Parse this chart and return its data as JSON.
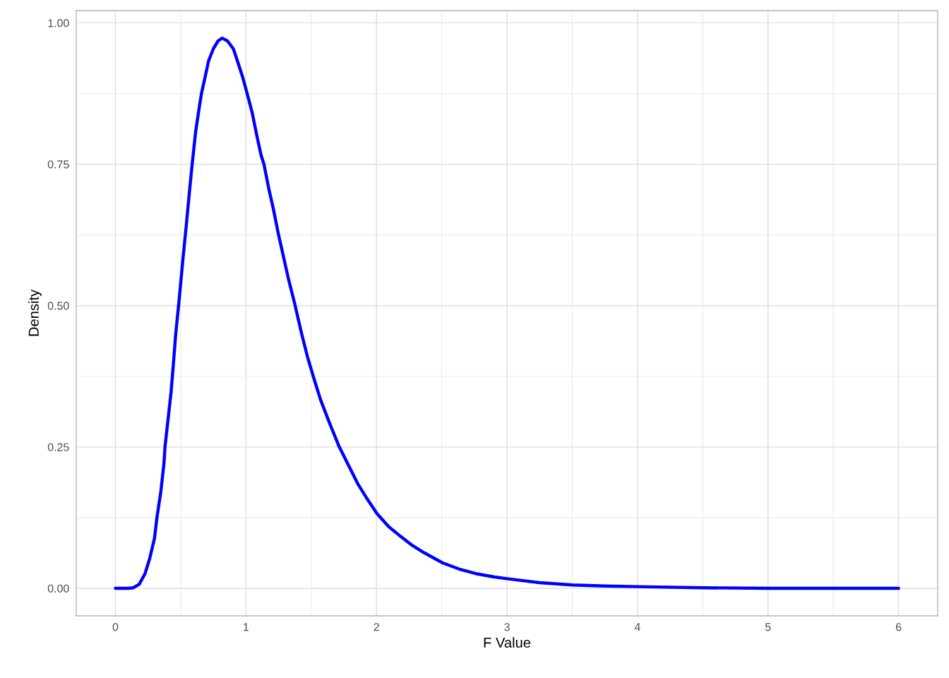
{
  "chart_data": {
    "type": "line",
    "xlabel": "F Value",
    "ylabel": "Density",
    "x": [
      0,
      0.05,
      0.1,
      0.136,
      0.182,
      0.227,
      0.263,
      0.299,
      0.318,
      0.348,
      0.372,
      0.38,
      0.402,
      0.426,
      0.444,
      0.462,
      0.484,
      0.516,
      0.543,
      0.57,
      0.588,
      0.615,
      0.642,
      0.66,
      0.687,
      0.714,
      0.75,
      0.786,
      0.817,
      0.859,
      0.904,
      0.94,
      0.975,
      1.008,
      1.048,
      1.084,
      1.116,
      1.138,
      1.174,
      1.21,
      1.25,
      1.291,
      1.327,
      1.373,
      1.427,
      1.472,
      1.517,
      1.571,
      1.634,
      1.715,
      1.787,
      1.859,
      1.932,
      2.004,
      2.094,
      2.184,
      2.274,
      2.364,
      2.507,
      2.635,
      2.761,
      2.905,
      3.0,
      3.25,
      3.5,
      3.75,
      4.0,
      4.5,
      5.0,
      5.5,
      6.0
    ],
    "series": [
      {
        "color": "#0000ff",
        "values": [
          0,
          0,
          0,
          0.001,
          0.007,
          0.026,
          0.053,
          0.088,
          0.125,
          0.171,
          0.221,
          0.25,
          0.296,
          0.346,
          0.396,
          0.45,
          0.5,
          0.579,
          0.642,
          0.708,
          0.75,
          0.808,
          0.85,
          0.876,
          0.904,
          0.933,
          0.954,
          0.968,
          0.973,
          0.968,
          0.954,
          0.929,
          0.904,
          0.876,
          0.841,
          0.8,
          0.766,
          0.75,
          0.708,
          0.671,
          0.625,
          0.583,
          0.546,
          0.504,
          0.45,
          0.409,
          0.374,
          0.334,
          0.296,
          0.25,
          0.217,
          0.184,
          0.157,
          0.132,
          0.109,
          0.092,
          0.076,
          0.063,
          0.045,
          0.034,
          0.026,
          0.02,
          0.017,
          0.01,
          0.006,
          0.004,
          0.003,
          0.001,
          0,
          0,
          0
        ]
      }
    ],
    "xlim": [
      -0.3,
      6.3
    ],
    "ylim": [
      -0.0487,
      1.0217
    ],
    "xticks": [
      0,
      {
        "value": 0.5,
        "label": null
      },
      1,
      {
        "value": 1.5,
        "label": null
      },
      2,
      {
        "value": 2.5,
        "label": null
      },
      3,
      {
        "value": 3.5,
        "label": null
      },
      4,
      {
        "value": 4.5,
        "label": null
      },
      5,
      {
        "value": 5.5,
        "label": null
      },
      6
    ],
    "yticks": [
      {
        "value": 0,
        "label": "0.00"
      },
      {
        "value": 0.125,
        "label": null
      },
      {
        "value": 0.25,
        "label": "0.25"
      },
      {
        "value": 0.375,
        "label": null
      },
      {
        "value": 0.5,
        "label": "0.50"
      },
      {
        "value": 0.625,
        "label": null
      },
      {
        "value": 0.75,
        "label": "0.75"
      },
      {
        "value": 0.875,
        "label": null
      },
      {
        "value": 1.0,
        "label": "1.00"
      }
    ],
    "grid": true
  }
}
